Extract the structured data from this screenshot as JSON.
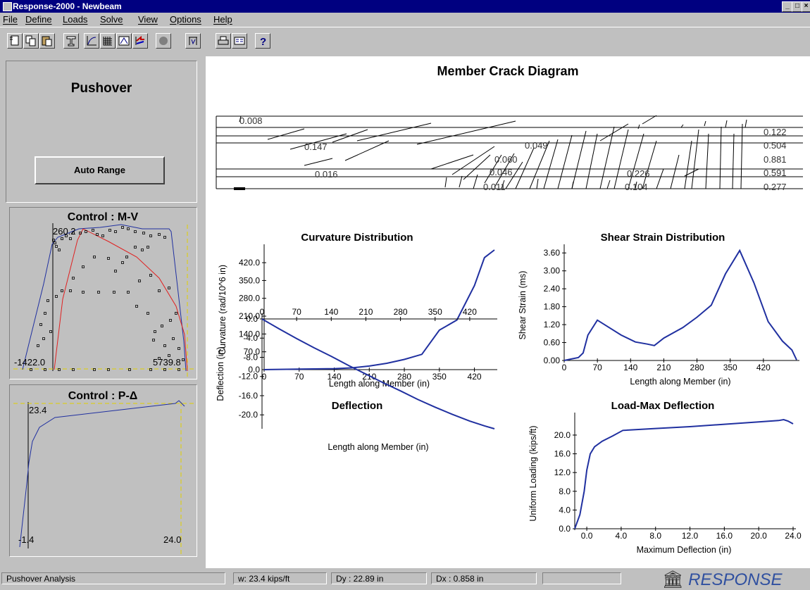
{
  "window": {
    "title": "Response-2000  -  Newbeam",
    "min_label": "_",
    "max_label": "□",
    "close_label": "×"
  },
  "menu": [
    "File",
    "Define",
    "Loads",
    "Solve",
    "View",
    "Options",
    "Help"
  ],
  "toolbar": {
    "icons": [
      "new-document-icon",
      "copy-icon",
      "paste-icon",
      "cross-section-icon",
      "curve-icon",
      "grid-icon",
      "member-icon",
      "arrow-flag-icon",
      "record-icon",
      "loading-icon",
      "print-icon",
      "view-icon",
      "help-icon"
    ]
  },
  "left": {
    "pushover_title": "Pushover",
    "auto_range_label": "Auto Range",
    "mv": {
      "title": "Control : M-V",
      "top_label": "260.2",
      "left_label": "-1422.0",
      "right_label": "5739.8"
    },
    "pd": {
      "title": "Control : P-Δ",
      "top_label": "23.4",
      "left_label": "-1.4",
      "right_label": "24.0"
    }
  },
  "crack": {
    "title": "Member Crack Diagram",
    "labels": [
      "0.008",
      "0.147",
      "0.049",
      "0.060",
      "0.016",
      "0.046",
      "0.011",
      "0.226",
      "0.104",
      "0.122",
      "0.504",
      "0.881",
      "0.591",
      "0.277"
    ]
  },
  "chart_data": [
    {
      "type": "line",
      "title": "Curvature Distribution",
      "xlabel": "Length along Member (in)",
      "ylabel": "Curvature (rad/10^6 in)",
      "xlim": [
        0,
        460
      ],
      "ylim": [
        0,
        470
      ],
      "xticks": [
        "0",
        "70",
        "140",
        "210",
        "280",
        "350",
        "420"
      ],
      "yticks": [
        "0.0",
        "70.0",
        "140.0",
        "210.0",
        "280.0",
        "350.0",
        "420.0"
      ],
      "x": [
        0,
        70,
        140,
        175,
        210,
        245,
        280,
        315,
        350,
        385,
        420,
        440,
        460
      ],
      "y": [
        0,
        2,
        4,
        7,
        14,
        25,
        40,
        60,
        155,
        195,
        330,
        440,
        470
      ]
    },
    {
      "type": "line",
      "title": "Shear Strain Distribution",
      "xlabel": "Length along Member (in)",
      "ylabel": "Shear Strain (ms)",
      "xlim": [
        0,
        490
      ],
      "ylim": [
        0,
        3.7
      ],
      "xticks": [
        "0",
        "70",
        "140",
        "210",
        "280",
        "350",
        "420"
      ],
      "yticks": [
        "0.00",
        "0.60",
        "1.20",
        "1.80",
        "2.40",
        "3.00",
        "3.60"
      ],
      "x": [
        0,
        15,
        30,
        40,
        50,
        70,
        90,
        120,
        150,
        175,
        190,
        210,
        250,
        280,
        310,
        340,
        370,
        400,
        430,
        460,
        480,
        490
      ],
      "y": [
        0,
        0.05,
        0.1,
        0.25,
        0.85,
        1.35,
        1.15,
        0.85,
        0.62,
        0.55,
        0.5,
        0.75,
        1.1,
        1.45,
        1.85,
        2.9,
        3.68,
        2.6,
        1.3,
        0.65,
        0.35,
        0.02
      ]
    },
    {
      "type": "line",
      "title": "Deflection",
      "xlabel": "Length along Member (in)",
      "ylabel": "Deflection (in)",
      "xlim": [
        0,
        470
      ],
      "ylim": [
        -22.9,
        0
      ],
      "xticks": [
        "0",
        "70",
        "140",
        "210",
        "280",
        "350",
        "420"
      ],
      "yticks": [
        "0.0",
        "-4.0",
        "-8.0",
        "-12.0",
        "-16.0",
        "-20.0"
      ],
      "x": [
        0,
        35,
        70,
        105,
        140,
        175,
        210,
        245,
        280,
        315,
        350,
        385,
        420,
        450,
        470
      ],
      "y": [
        0,
        -2.1,
        -4.1,
        -6.0,
        -7.8,
        -9.7,
        -11.5,
        -13.3,
        -15.0,
        -16.8,
        -18.4,
        -19.9,
        -21.3,
        -22.3,
        -22.9
      ]
    },
    {
      "type": "line",
      "title": "Load-Max Deflection",
      "xlabel": "Maximum Deflection (in)",
      "ylabel": "Uniform Loading (kips/ft)",
      "xlim": [
        -1.4,
        24.0
      ],
      "ylim": [
        0,
        23.6
      ],
      "xticks": [
        "0.0",
        "4.0",
        "8.0",
        "12.0",
        "16.0",
        "20.0",
        "24.0"
      ],
      "yticks": [
        "0.0",
        "4.0",
        "8.0",
        "12.0",
        "16.0",
        "20.0"
      ],
      "x": [
        -1.4,
        -0.8,
        -0.3,
        0.0,
        0.4,
        0.9,
        1.8,
        3.0,
        4.2,
        8,
        12,
        16,
        20,
        22.3,
        22.9,
        23.4,
        24.0
      ],
      "y": [
        0,
        3,
        8,
        12.5,
        16,
        17.5,
        18.7,
        19.8,
        21,
        21.4,
        21.8,
        22.3,
        22.8,
        23.1,
        23.3,
        23.0,
        22.4
      ]
    }
  ],
  "status": {
    "mode": "Pushover Analysis",
    "w": "w:  23.4 kips/ft",
    "dy": "Dy : 22.89 in",
    "dx": "Dx : 0.858 in",
    "brand": "RESPONSE"
  },
  "colors": {
    "curve": "#2030a0",
    "red": "#e02020",
    "yellow": "#e0d000",
    "window": "#000080"
  }
}
